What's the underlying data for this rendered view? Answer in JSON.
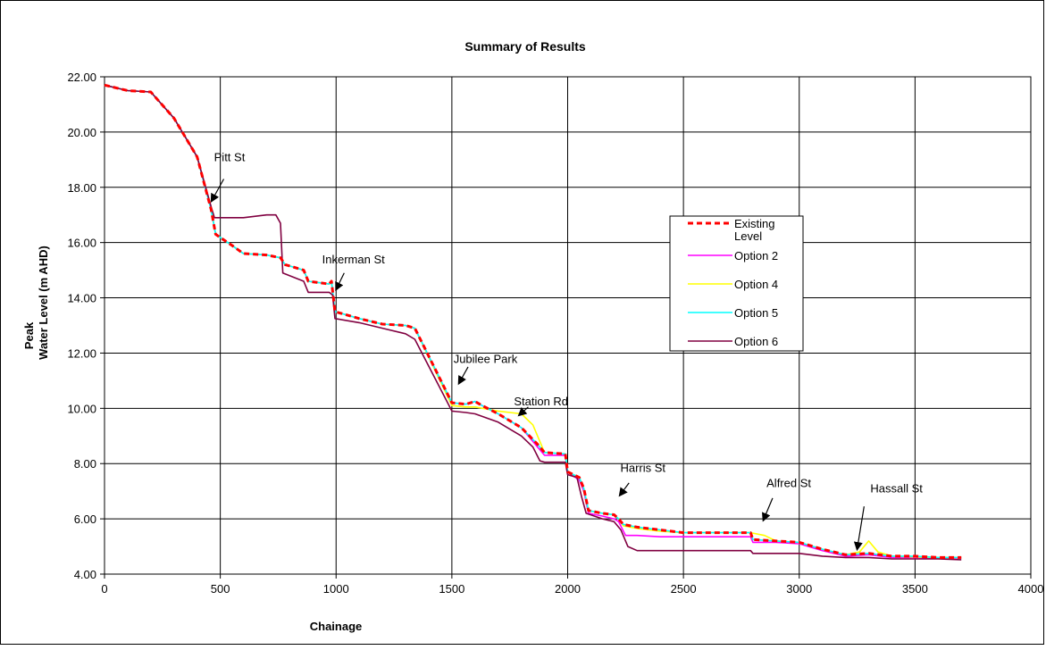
{
  "chart_data": {
    "type": "line",
    "title": "Summary of Results",
    "xlabel": "Chainage",
    "ylabel_lines": [
      "Peak",
      "Water Level (m AHD)"
    ],
    "xlim": [
      0,
      4000
    ],
    "ylim": [
      4,
      22
    ],
    "xticks": [
      0,
      500,
      1000,
      1500,
      2000,
      2500,
      3000,
      3500,
      4000
    ],
    "yticks": [
      4,
      6,
      8,
      10,
      12,
      14,
      16,
      18,
      20,
      22
    ],
    "ytick_labels": [
      "4.00",
      "6.00",
      "8.00",
      "10.00",
      "12.00",
      "14.00",
      "16.00",
      "18.00",
      "20.00",
      "22.00"
    ],
    "grid": true,
    "legend_position": "right-middle",
    "series": [
      {
        "name": "Existing Level",
        "color": "#FF0000",
        "dash": true,
        "points": [
          [
            0,
            21.7
          ],
          [
            100,
            21.5
          ],
          [
            200,
            21.45
          ],
          [
            300,
            20.5
          ],
          [
            400,
            19.1
          ],
          [
            460,
            17.2
          ],
          [
            480,
            16.3
          ],
          [
            550,
            15.9
          ],
          [
            600,
            15.6
          ],
          [
            700,
            15.55
          ],
          [
            760,
            15.45
          ],
          [
            780,
            15.2
          ],
          [
            860,
            15.0
          ],
          [
            880,
            14.6
          ],
          [
            970,
            14.5
          ],
          [
            980,
            14.6
          ],
          [
            995,
            13.5
          ],
          [
            1100,
            13.25
          ],
          [
            1200,
            13.05
          ],
          [
            1300,
            13.0
          ],
          [
            1340,
            12.9
          ],
          [
            1500,
            10.2
          ],
          [
            1560,
            10.15
          ],
          [
            1600,
            10.25
          ],
          [
            1630,
            10.1
          ],
          [
            1700,
            9.8
          ],
          [
            1800,
            9.3
          ],
          [
            1870,
            8.7
          ],
          [
            1900,
            8.4
          ],
          [
            1990,
            8.35
          ],
          [
            2000,
            7.7
          ],
          [
            2050,
            7.5
          ],
          [
            2070,
            7.1
          ],
          [
            2090,
            6.3
          ],
          [
            2150,
            6.2
          ],
          [
            2200,
            6.15
          ],
          [
            2220,
            6.0
          ],
          [
            2240,
            5.8
          ],
          [
            2300,
            5.7
          ],
          [
            2400,
            5.6
          ],
          [
            2500,
            5.5
          ],
          [
            2790,
            5.5
          ],
          [
            2800,
            5.25
          ],
          [
            2900,
            5.2
          ],
          [
            3000,
            5.15
          ],
          [
            3100,
            4.9
          ],
          [
            3200,
            4.7
          ],
          [
            3300,
            4.75
          ],
          [
            3400,
            4.65
          ],
          [
            3500,
            4.65
          ],
          [
            3600,
            4.6
          ],
          [
            3700,
            4.6
          ]
        ]
      },
      {
        "name": "Option 2",
        "color": "#FF00FF",
        "dash": false,
        "points": [
          [
            0,
            21.7
          ],
          [
            100,
            21.5
          ],
          [
            200,
            21.45
          ],
          [
            300,
            20.5
          ],
          [
            400,
            19.1
          ],
          [
            460,
            17.2
          ],
          [
            480,
            16.3
          ],
          [
            550,
            15.9
          ],
          [
            600,
            15.6
          ],
          [
            700,
            15.55
          ],
          [
            760,
            15.45
          ],
          [
            780,
            15.2
          ],
          [
            860,
            15.0
          ],
          [
            880,
            14.6
          ],
          [
            970,
            14.5
          ],
          [
            980,
            14.6
          ],
          [
            995,
            13.5
          ],
          [
            1100,
            13.25
          ],
          [
            1200,
            13.05
          ],
          [
            1300,
            13.0
          ],
          [
            1340,
            12.9
          ],
          [
            1500,
            10.2
          ],
          [
            1560,
            10.15
          ],
          [
            1600,
            10.25
          ],
          [
            1630,
            10.1
          ],
          [
            1700,
            9.8
          ],
          [
            1800,
            9.3
          ],
          [
            1870,
            8.6
          ],
          [
            1900,
            8.3
          ],
          [
            1990,
            8.3
          ],
          [
            2000,
            7.7
          ],
          [
            2050,
            7.4
          ],
          [
            2070,
            7.0
          ],
          [
            2090,
            6.2
          ],
          [
            2150,
            6.1
          ],
          [
            2200,
            6.0
          ],
          [
            2220,
            5.9
          ],
          [
            2250,
            5.4
          ],
          [
            2300,
            5.4
          ],
          [
            2400,
            5.35
          ],
          [
            2500,
            5.35
          ],
          [
            2790,
            5.35
          ],
          [
            2800,
            5.15
          ],
          [
            2900,
            5.15
          ],
          [
            3000,
            5.1
          ],
          [
            3100,
            4.85
          ],
          [
            3200,
            4.65
          ],
          [
            3300,
            4.7
          ],
          [
            3400,
            4.6
          ],
          [
            3500,
            4.6
          ],
          [
            3600,
            4.58
          ],
          [
            3700,
            4.58
          ]
        ]
      },
      {
        "name": "Option 4",
        "color": "#FFFF00",
        "dash": false,
        "points": [
          [
            0,
            21.7
          ],
          [
            100,
            21.5
          ],
          [
            200,
            21.45
          ],
          [
            300,
            20.5
          ],
          [
            400,
            19.1
          ],
          [
            460,
            17.2
          ],
          [
            480,
            16.3
          ],
          [
            550,
            15.9
          ],
          [
            600,
            15.6
          ],
          [
            700,
            15.55
          ],
          [
            760,
            15.45
          ],
          [
            780,
            15.2
          ],
          [
            860,
            15.0
          ],
          [
            880,
            14.6
          ],
          [
            970,
            14.5
          ],
          [
            980,
            14.6
          ],
          [
            995,
            13.5
          ],
          [
            1100,
            13.25
          ],
          [
            1200,
            13.05
          ],
          [
            1300,
            13.0
          ],
          [
            1340,
            12.9
          ],
          [
            1500,
            10.1
          ],
          [
            1560,
            10.05
          ],
          [
            1600,
            10.05
          ],
          [
            1700,
            9.9
          ],
          [
            1800,
            9.8
          ],
          [
            1850,
            9.4
          ],
          [
            1900,
            8.4
          ],
          [
            1990,
            8.35
          ],
          [
            2000,
            7.7
          ],
          [
            2050,
            7.5
          ],
          [
            2070,
            7.1
          ],
          [
            2090,
            6.3
          ],
          [
            2150,
            6.2
          ],
          [
            2200,
            6.15
          ],
          [
            2220,
            6.0
          ],
          [
            2240,
            5.75
          ],
          [
            2300,
            5.65
          ],
          [
            2400,
            5.55
          ],
          [
            2500,
            5.5
          ],
          [
            2790,
            5.5
          ],
          [
            2850,
            5.4
          ],
          [
            2900,
            5.2
          ],
          [
            3000,
            5.15
          ],
          [
            3100,
            4.9
          ],
          [
            3200,
            4.7
          ],
          [
            3260,
            4.8
          ],
          [
            3300,
            5.2
          ],
          [
            3340,
            4.8
          ],
          [
            3400,
            4.65
          ],
          [
            3500,
            4.62
          ],
          [
            3600,
            4.6
          ],
          [
            3700,
            4.6
          ]
        ]
      },
      {
        "name": "Option 5",
        "color": "#00FFFF",
        "dash": false,
        "points": [
          [
            0,
            21.7
          ],
          [
            100,
            21.5
          ],
          [
            200,
            21.45
          ],
          [
            300,
            20.5
          ],
          [
            400,
            19.1
          ],
          [
            460,
            17.2
          ],
          [
            480,
            16.3
          ],
          [
            550,
            15.9
          ],
          [
            600,
            15.6
          ],
          [
            700,
            15.55
          ],
          [
            760,
            15.45
          ],
          [
            780,
            15.2
          ],
          [
            860,
            15.0
          ],
          [
            880,
            14.6
          ],
          [
            970,
            14.5
          ],
          [
            980,
            14.6
          ],
          [
            995,
            13.5
          ],
          [
            1100,
            13.25
          ],
          [
            1200,
            13.05
          ],
          [
            1300,
            13.0
          ],
          [
            1340,
            12.9
          ],
          [
            1500,
            10.2
          ],
          [
            1560,
            10.15
          ],
          [
            1600,
            10.25
          ],
          [
            1630,
            10.1
          ],
          [
            1700,
            9.8
          ],
          [
            1800,
            9.3
          ],
          [
            1870,
            8.7
          ],
          [
            1900,
            8.4
          ],
          [
            1990,
            8.35
          ],
          [
            2000,
            7.7
          ],
          [
            2050,
            7.5
          ],
          [
            2070,
            7.1
          ],
          [
            2090,
            6.3
          ],
          [
            2150,
            6.2
          ],
          [
            2200,
            6.15
          ],
          [
            2220,
            6.0
          ],
          [
            2240,
            5.8
          ],
          [
            2300,
            5.7
          ],
          [
            2400,
            5.6
          ],
          [
            2500,
            5.5
          ],
          [
            2790,
            5.5
          ],
          [
            2800,
            5.25
          ],
          [
            2900,
            5.2
          ],
          [
            3000,
            5.15
          ],
          [
            3100,
            4.9
          ],
          [
            3200,
            4.7
          ],
          [
            3300,
            4.75
          ],
          [
            3400,
            4.65
          ],
          [
            3500,
            4.65
          ],
          [
            3600,
            4.6
          ],
          [
            3700,
            4.6
          ]
        ]
      },
      {
        "name": "Option 6",
        "color": "#800040",
        "dash": false,
        "points": [
          [
            0,
            21.7
          ],
          [
            100,
            21.5
          ],
          [
            200,
            21.45
          ],
          [
            300,
            20.5
          ],
          [
            400,
            19.1
          ],
          [
            460,
            17.3
          ],
          [
            475,
            16.9
          ],
          [
            600,
            16.9
          ],
          [
            700,
            17.0
          ],
          [
            740,
            17.0
          ],
          [
            760,
            16.7
          ],
          [
            770,
            14.9
          ],
          [
            860,
            14.6
          ],
          [
            880,
            14.2
          ],
          [
            970,
            14.2
          ],
          [
            985,
            14.1
          ],
          [
            995,
            13.25
          ],
          [
            1100,
            13.1
          ],
          [
            1200,
            12.9
          ],
          [
            1300,
            12.7
          ],
          [
            1340,
            12.5
          ],
          [
            1500,
            9.9
          ],
          [
            1560,
            9.85
          ],
          [
            1600,
            9.8
          ],
          [
            1700,
            9.5
          ],
          [
            1800,
            9.0
          ],
          [
            1850,
            8.6
          ],
          [
            1880,
            8.1
          ],
          [
            1900,
            8.05
          ],
          [
            1990,
            8.05
          ],
          [
            2000,
            7.6
          ],
          [
            2040,
            7.5
          ],
          [
            2060,
            6.8
          ],
          [
            2080,
            6.2
          ],
          [
            2150,
            6.0
          ],
          [
            2200,
            5.9
          ],
          [
            2230,
            5.6
          ],
          [
            2260,
            5.0
          ],
          [
            2300,
            4.85
          ],
          [
            2400,
            4.85
          ],
          [
            2500,
            4.85
          ],
          [
            2790,
            4.85
          ],
          [
            2800,
            4.75
          ],
          [
            2900,
            4.75
          ],
          [
            3000,
            4.75
          ],
          [
            3100,
            4.65
          ],
          [
            3200,
            4.6
          ],
          [
            3300,
            4.6
          ],
          [
            3400,
            4.55
          ],
          [
            3500,
            4.55
          ],
          [
            3600,
            4.55
          ],
          [
            3700,
            4.52
          ]
        ]
      }
    ],
    "annotations": [
      {
        "text": "Pitt St",
        "label_x": 540,
        "label_y": 18.95,
        "arrow_from": [
          515,
          18.3
        ],
        "arrow_to": [
          462,
          17.5
        ]
      },
      {
        "text": "Inkerman St",
        "label_x": 1075,
        "label_y": 15.25,
        "arrow_from": [
          1035,
          14.9
        ],
        "arrow_to": [
          1000,
          14.3
        ]
      },
      {
        "text": "Jubilee Park",
        "label_x": 1645,
        "label_y": 11.65,
        "arrow_from": [
          1570,
          11.5
        ],
        "arrow_to": [
          1530,
          10.9
        ]
      },
      {
        "text": "Station Rd",
        "label_x": 1885,
        "label_y": 10.1,
        "arrow_from": [
          1830,
          10.05
        ],
        "arrow_to": [
          1790,
          9.75
        ]
      },
      {
        "text": "Harris St",
        "label_x": 2325,
        "label_y": 7.7,
        "arrow_from": [
          2265,
          7.3
        ],
        "arrow_to": [
          2225,
          6.85
        ]
      },
      {
        "text": "Alfred St",
        "label_x": 2955,
        "label_y": 7.15,
        "arrow_from": [
          2885,
          6.75
        ],
        "arrow_to": [
          2845,
          5.95
        ]
      },
      {
        "text": "Hassall St",
        "label_x": 3420,
        "label_y": 6.95,
        "arrow_from": [
          3280,
          6.45
        ],
        "arrow_to": [
          3250,
          4.9
        ]
      }
    ]
  }
}
